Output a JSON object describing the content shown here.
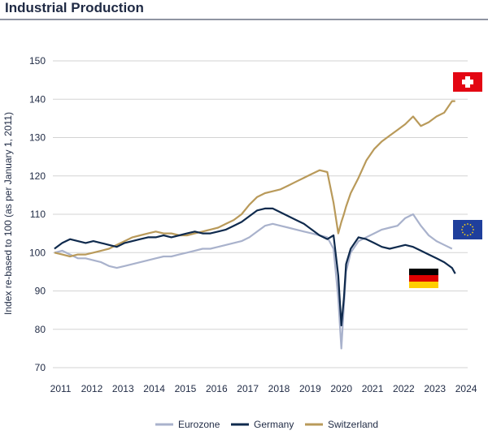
{
  "chart_data": {
    "type": "line",
    "title": "Industrial Production",
    "ylabel": "Index re-based to 100 (as per January 1, 2011)",
    "xlabel": "",
    "ylim": [
      70,
      150
    ],
    "xlim": [
      2010.95,
      2024.25
    ],
    "yticks": [
      70,
      80,
      90,
      100,
      110,
      120,
      130,
      140,
      150
    ],
    "xticks": [
      "2011",
      "2012",
      "2013",
      "2014",
      "2015",
      "2016",
      "2017",
      "2018",
      "2019",
      "2020",
      "2021",
      "2022",
      "2023",
      "2024"
    ],
    "grid": "horizontal",
    "legend_position": "bottom",
    "colors": {
      "Eurozone": "#a9b2cc",
      "Germany": "#0f2a4d",
      "Switzerland": "#b99a5a",
      "axis_text": "#1f2a44",
      "grid": "#d3d3d3"
    },
    "flags": [
      "swiss-flag-icon",
      "eu-flag-icon",
      "german-flag-icon"
    ],
    "series": [
      {
        "name": "Eurozone",
        "x": [
          2011.0,
          2011.25,
          2011.5,
          2011.75,
          2012.0,
          2012.25,
          2012.5,
          2012.75,
          2013.0,
          2013.25,
          2013.5,
          2013.75,
          2014.0,
          2014.25,
          2014.5,
          2014.75,
          2015.0,
          2015.25,
          2015.5,
          2015.75,
          2016.0,
          2016.25,
          2016.5,
          2016.75,
          2017.0,
          2017.25,
          2017.5,
          2017.75,
          2018.0,
          2018.25,
          2018.5,
          2018.75,
          2019.0,
          2019.25,
          2019.5,
          2019.75,
          2019.95,
          2020.1,
          2020.2,
          2020.28,
          2020.35,
          2020.5,
          2020.75,
          2021.0,
          2021.25,
          2021.5,
          2021.75,
          2022.0,
          2022.25,
          2022.5,
          2022.75,
          2023.0,
          2023.25,
          2023.5,
          2023.75
        ],
        "values": [
          100,
          100.5,
          99.5,
          98.5,
          98.5,
          98,
          97.5,
          96.5,
          96,
          96.5,
          97,
          97.5,
          98,
          98.5,
          99,
          99,
          99.5,
          100,
          100.5,
          101,
          101,
          101.5,
          102,
          102.5,
          103,
          104,
          105.5,
          107,
          107.5,
          107,
          106.5,
          106,
          105.5,
          105,
          104.5,
          104,
          101,
          88,
          75,
          86,
          95,
          100,
          103,
          104,
          105,
          106,
          106.5,
          107,
          109,
          110,
          107,
          104.5,
          103,
          102,
          101
        ]
      },
      {
        "name": "Germany",
        "x": [
          2011.0,
          2011.25,
          2011.5,
          2011.75,
          2012.0,
          2012.25,
          2012.5,
          2012.75,
          2013.0,
          2013.25,
          2013.5,
          2013.75,
          2014.0,
          2014.25,
          2014.5,
          2014.75,
          2015.0,
          2015.25,
          2015.5,
          2015.75,
          2016.0,
          2016.25,
          2016.5,
          2016.75,
          2017.0,
          2017.25,
          2017.5,
          2017.75,
          2018.0,
          2018.25,
          2018.5,
          2018.75,
          2019.0,
          2019.25,
          2019.5,
          2019.75,
          2019.95,
          2020.1,
          2020.2,
          2020.28,
          2020.35,
          2020.5,
          2020.75,
          2021.0,
          2021.25,
          2021.5,
          2021.75,
          2022.0,
          2022.25,
          2022.5,
          2022.75,
          2023.0,
          2023.25,
          2023.5,
          2023.75,
          2023.85
        ],
        "values": [
          101,
          102.5,
          103.5,
          103,
          102.5,
          103,
          102.5,
          102,
          101.5,
          102.5,
          103,
          103.5,
          104,
          104,
          104.5,
          104,
          104.5,
          105,
          105.5,
          105,
          105,
          105.5,
          106,
          107,
          108,
          109.5,
          111,
          111.5,
          111.5,
          110.5,
          109.5,
          108.5,
          107.5,
          106,
          104.5,
          103.5,
          104.5,
          94,
          81,
          88,
          97,
          101,
          104,
          103.5,
          102.5,
          101.5,
          101,
          101.5,
          102,
          101.5,
          100.5,
          99.5,
          98.5,
          97.5,
          96,
          94.5
        ]
      },
      {
        "name": "Switzerland",
        "x": [
          2011.0,
          2011.25,
          2011.5,
          2011.75,
          2012.0,
          2012.25,
          2012.5,
          2012.75,
          2013.0,
          2013.25,
          2013.5,
          2013.75,
          2014.0,
          2014.25,
          2014.5,
          2014.75,
          2015.0,
          2015.25,
          2015.5,
          2015.75,
          2016.0,
          2016.25,
          2016.5,
          2016.75,
          2017.0,
          2017.25,
          2017.5,
          2017.75,
          2018.0,
          2018.25,
          2018.5,
          2018.75,
          2019.0,
          2019.25,
          2019.5,
          2019.75,
          2019.95,
          2020.1,
          2020.2,
          2020.28,
          2020.35,
          2020.5,
          2020.75,
          2021.0,
          2021.25,
          2021.5,
          2021.75,
          2022.0,
          2022.25,
          2022.5,
          2022.75,
          2023.0,
          2023.25,
          2023.5,
          2023.75,
          2023.85
        ],
        "values": [
          100,
          99.5,
          99,
          99.5,
          99.5,
          100,
          100.5,
          101,
          102,
          103,
          104,
          104.5,
          105,
          105.5,
          105,
          105,
          104.5,
          104.5,
          105,
          105.5,
          106,
          106.5,
          107.5,
          108.5,
          110,
          112.5,
          114.5,
          115.5,
          116,
          116.5,
          117.5,
          118.5,
          119.5,
          120.5,
          121.5,
          121,
          113,
          105,
          108,
          110,
          112,
          115.5,
          119.5,
          124,
          127,
          129,
          130.5,
          132,
          133.5,
          135.5,
          133,
          134,
          135.5,
          136.5,
          139.5,
          139.5
        ]
      }
    ]
  }
}
